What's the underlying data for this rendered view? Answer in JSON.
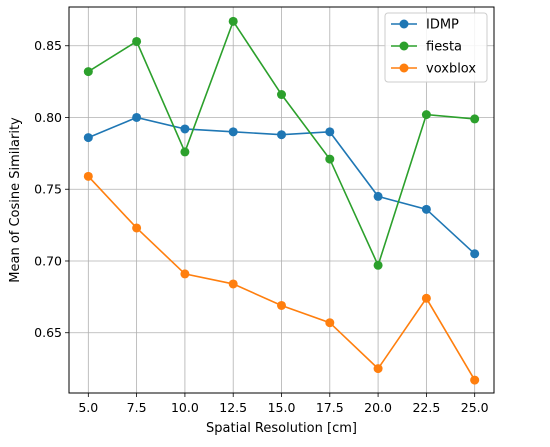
{
  "chart_data": {
    "type": "line",
    "title": "",
    "xlabel": "Spatial Resolution [cm]",
    "ylabel": "Mean of Cosine Similarity",
    "x": [
      5.0,
      7.5,
      10.0,
      12.5,
      15.0,
      17.5,
      20.0,
      22.5,
      25.0
    ],
    "x_tick_labels": [
      "5.0",
      "7.5",
      "10.0",
      "12.5",
      "15.0",
      "17.5",
      "20.0",
      "22.5",
      "25.0"
    ],
    "y_ticks": [
      0.65,
      0.7,
      0.75,
      0.8,
      0.85
    ],
    "y_tick_labels": [
      "0.65",
      "0.70",
      "0.75",
      "0.80",
      "0.85"
    ],
    "xlim": [
      4.0,
      26.0
    ],
    "ylim": [
      0.608,
      0.877
    ],
    "grid": true,
    "legend_position": "top-right",
    "series": [
      {
        "name": "IDMP",
        "color": "#1f77b4",
        "values": [
          0.786,
          0.8,
          0.792,
          0.79,
          0.788,
          0.79,
          0.745,
          0.736,
          0.705
        ]
      },
      {
        "name": "fiesta",
        "color": "#2ca02c",
        "values": [
          0.832,
          0.853,
          0.776,
          0.867,
          0.816,
          0.771,
          0.697,
          0.802,
          0.799
        ]
      },
      {
        "name": "voxblox",
        "color": "#ff7f0e",
        "values": [
          0.759,
          0.723,
          0.691,
          0.684,
          0.669,
          0.657,
          0.625,
          0.674,
          0.617
        ]
      }
    ]
  }
}
